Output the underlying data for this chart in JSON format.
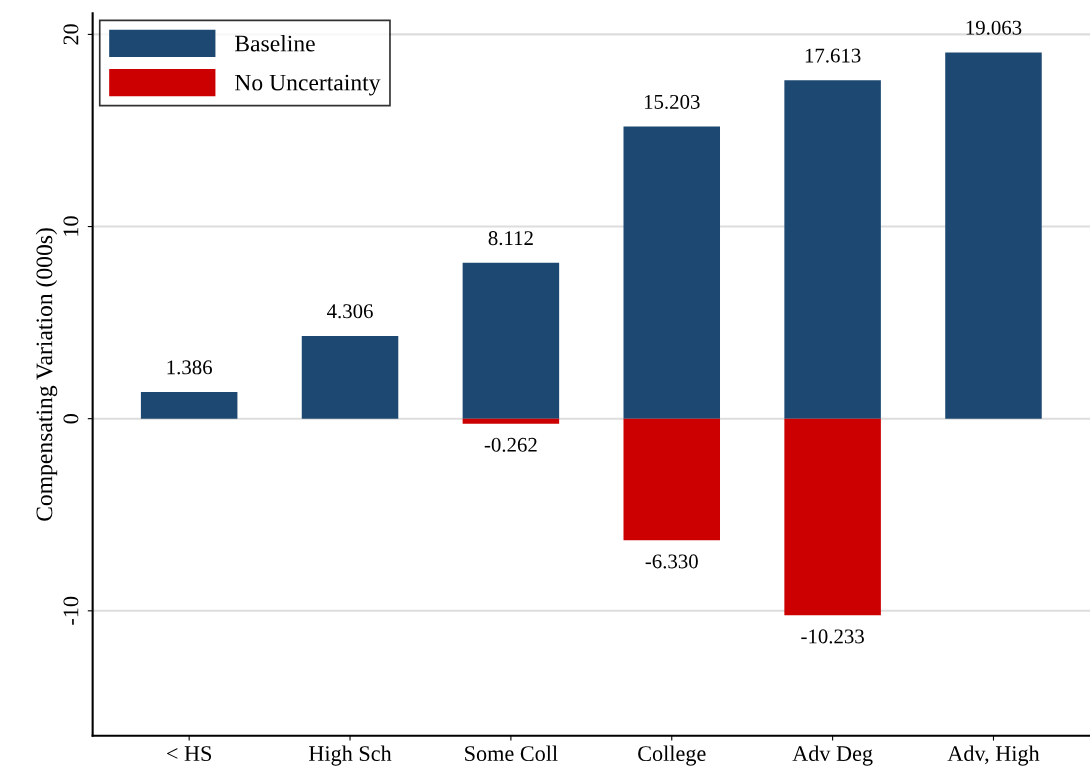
{
  "chart_data": {
    "type": "bar",
    "ylabel": "Compensating Variation (000s)",
    "categories": [
      "< HS",
      "High Sch",
      "Some Coll",
      "College",
      "Adv Deg",
      "Adv, High"
    ],
    "stacked": true,
    "series": [
      {
        "name": "Baseline",
        "color": "#1d4871",
        "values": [
          1.386,
          4.306,
          8.112,
          15.203,
          17.613,
          19.063
        ],
        "value_labels": [
          "1.386",
          "4.306",
          "8.112",
          "15.203",
          "17.613",
          "19.063"
        ]
      },
      {
        "name": "No Uncertainty",
        "color": "#cc0000",
        "values": [
          null,
          null,
          -0.262,
          -6.33,
          -10.233,
          null
        ],
        "value_labels": [
          null,
          null,
          "-0.262",
          "-6.330",
          "-10.233",
          null
        ]
      }
    ],
    "ylim": [
      -16.5,
      21.1
    ],
    "yticks": [
      -10,
      0,
      10,
      20
    ],
    "grid": "y",
    "legend": "top left"
  }
}
